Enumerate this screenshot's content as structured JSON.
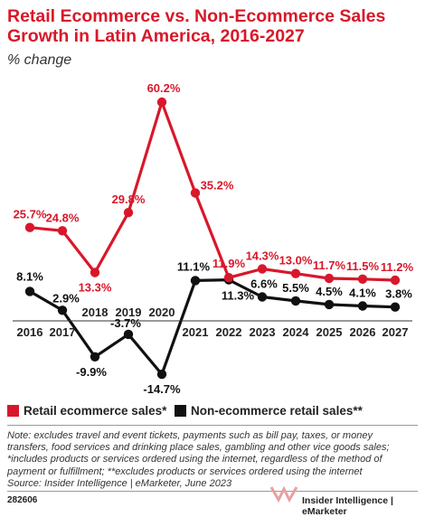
{
  "header": {
    "title": "Retail Ecommerce vs. Non-Ecommerce Sales Growth in Latin America, 2016-2027",
    "subtitle": "% change"
  },
  "chart_data": {
    "type": "line",
    "categories": [
      "2016",
      "2017",
      "2018",
      "2019",
      "2020",
      "2021",
      "2022",
      "2023",
      "2024",
      "2025",
      "2026",
      "2027"
    ],
    "series": [
      {
        "name": "Retail ecommerce sales*",
        "color": "#d8182a",
        "values": [
          25.7,
          24.8,
          13.3,
          29.8,
          60.2,
          35.2,
          11.9,
          14.3,
          13.0,
          11.7,
          11.5,
          11.2
        ],
        "labels": [
          "25.7%",
          "24.8%",
          "13.3%",
          "29.8%",
          "60.2%",
          "35.2%",
          "11.9%",
          "14.3%",
          "13.0%",
          "11.7%",
          "11.5%",
          "11.2%"
        ]
      },
      {
        "name": "Non-ecommerce retail sales**",
        "color": "#111111",
        "values": [
          8.1,
          2.9,
          -9.9,
          -3.7,
          -14.7,
          11.1,
          11.3,
          6.6,
          5.5,
          4.5,
          4.1,
          3.8
        ],
        "labels": [
          "8.1%",
          "2.9%",
          "-9.9%",
          "-3.7%",
          "-14.7%",
          "11.1%",
          "11.3%",
          "6.6%",
          "5.5%",
          "4.5%",
          "4.1%",
          "3.8%"
        ]
      }
    ],
    "ylim": [
      -17,
      63
    ],
    "grid": false,
    "legend_position": "bottom-left"
  },
  "legend": [
    {
      "label": "Retail ecommerce sales*",
      "color": "#d8182a"
    },
    {
      "label": "Non-ecommerce retail sales**",
      "color": "#111111"
    }
  ],
  "footer": {
    "note": "Note: excludes travel and event tickets, payments such as bill pay, taxes, or money transfers, food services and drinking place sales, gambling and other vice goods sales; *includes products or services ordered using the internet, regardless of the method of payment or fulfillment; **excludes products or services ordered using the internet",
    "source": "Source: Insider Intelligence | eMarketer, June 2023",
    "code": "282606",
    "brand": "Insider Intelligence | eMarketer"
  }
}
